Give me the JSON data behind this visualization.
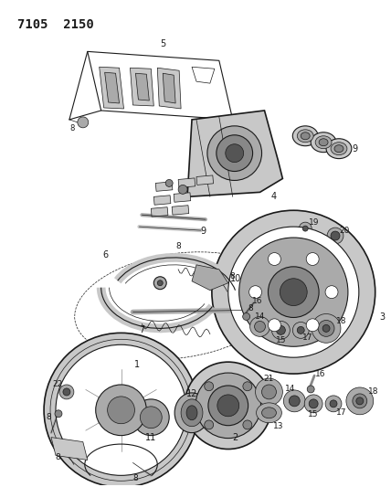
{
  "title": "7105  2150",
  "bg_color": "#ffffff",
  "fig_width": 4.28,
  "fig_height": 5.33,
  "dpi": 100,
  "lc": "#1a1a1a",
  "gray1": "#c8c8c8",
  "gray2": "#aaaaaa",
  "gray3": "#888888",
  "gray4": "#555555",
  "title_fontsize": 10,
  "label_fontsize": 6.5
}
